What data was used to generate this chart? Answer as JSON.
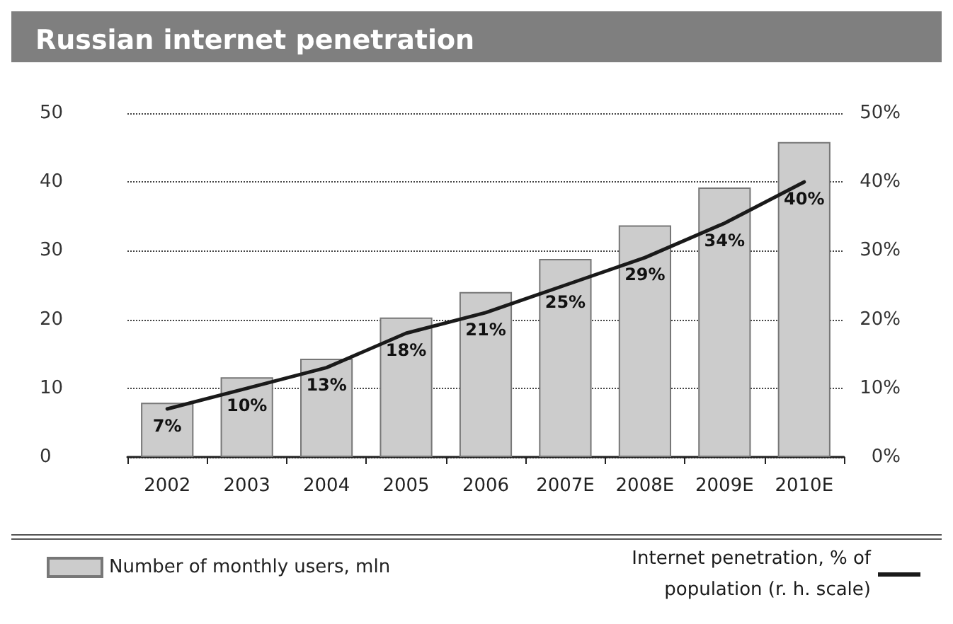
{
  "chart_data": {
    "type": "bar",
    "title": "Russian internet penetration",
    "categories": [
      "2002",
      "2003",
      "2004",
      "2005",
      "2006",
      "2007E",
      "2008E",
      "2009E",
      "2010E"
    ],
    "series": [
      {
        "name": "Number of monthly users, mln",
        "color": "#cccccc",
        "values": [
          7.9,
          11.6,
          14.3,
          20.3,
          24,
          28.8,
          33.7,
          39.2,
          45.8
        ]
      },
      {
        "name": "Internet penetration, % of population (r. h. scale)",
        "type": "line",
        "axis": "y2",
        "color": "#1a1a1a",
        "values": [
          7,
          10,
          13,
          18,
          21,
          25,
          29,
          34,
          40
        ],
        "value_labels": [
          "7%",
          "10%",
          "13%",
          "18%",
          "21%",
          "25%",
          "29%",
          "34%",
          "40%"
        ]
      }
    ],
    "ylim": [
      0,
      50
    ],
    "yticks": [
      0,
      10,
      20,
      30,
      40,
      50
    ],
    "y2lim": [
      0,
      50
    ],
    "y2ticks": [
      {
        "value": 0,
        "label": "0%"
      },
      {
        "value": 10,
        "label": "10%"
      },
      {
        "value": 20,
        "label": "20%"
      },
      {
        "value": 30,
        "label": "30%"
      },
      {
        "value": 40,
        "label": "40%"
      },
      {
        "value": 50,
        "label": "50%"
      }
    ],
    "grid": "y",
    "legend": "bottom",
    "marker": "none",
    "line_style": "solid"
  }
}
